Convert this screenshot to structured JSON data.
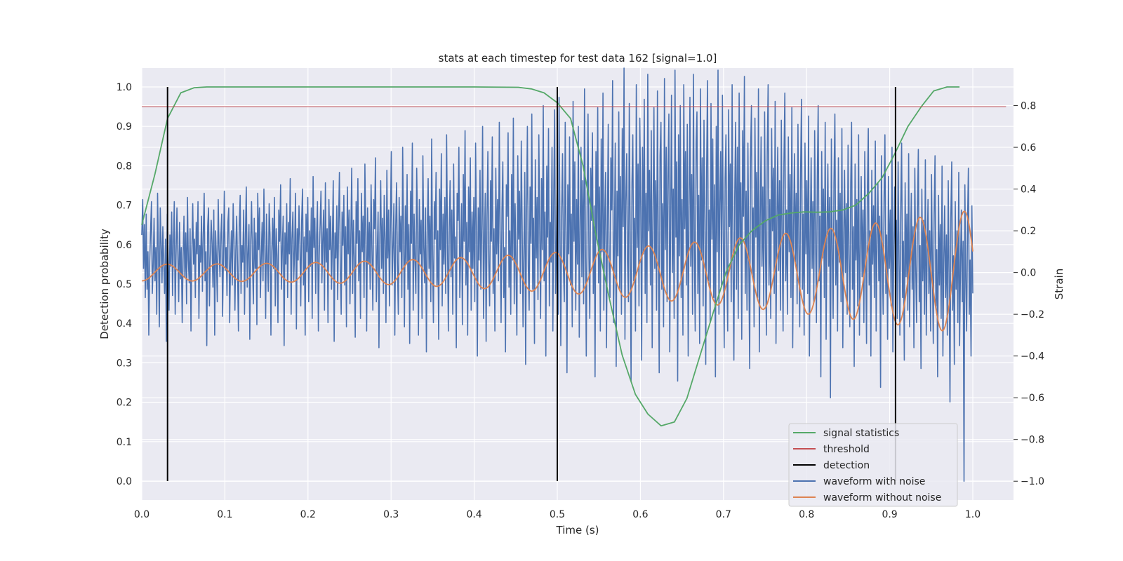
{
  "chart_data": {
    "type": "line",
    "title": "stats at each timestep for test data 162 [signal=1.0]",
    "xlabel": "Time (s)",
    "ylabel": "Detection probability",
    "y2label": "Strain",
    "xlim": [
      0.0,
      1.05
    ],
    "ylim": [
      -0.048,
      1.048
    ],
    "y2lim": [
      -1.09,
      0.98
    ],
    "x_ticks": [
      0.0,
      0.1,
      0.2,
      0.3,
      0.4,
      0.5,
      0.6,
      0.7,
      0.8,
      0.9,
      1.0
    ],
    "x_tick_labels": [
      "0.0",
      "0.1",
      "0.2",
      "0.3",
      "0.4",
      "0.5",
      "0.6",
      "0.7",
      "0.8",
      "0.9",
      "1.0"
    ],
    "y_ticks": [
      0.0,
      0.1,
      0.2,
      0.3,
      0.4,
      0.5,
      0.6,
      0.7,
      0.8,
      0.9,
      1.0
    ],
    "y_tick_labels": [
      "0.0",
      "0.1",
      "0.2",
      "0.3",
      "0.4",
      "0.5",
      "0.6",
      "0.7",
      "0.8",
      "0.9",
      "1.0"
    ],
    "y2_ticks": [
      -1.0,
      -0.8,
      -0.6,
      -0.4,
      -0.2,
      0.0,
      0.2,
      0.4,
      0.6,
      0.8
    ],
    "y2_tick_labels": [
      "−1.0",
      "−0.8",
      "−0.6",
      "−0.4",
      "−0.2",
      "0.0",
      "0.2",
      "0.4",
      "0.6",
      "0.8"
    ],
    "grid": true,
    "legend_position": "bottom-right",
    "threshold": 0.95,
    "detections": [
      0.031,
      0.5,
      0.907
    ],
    "series": [
      {
        "name": "signal statistics",
        "color": "#55a868",
        "axis": "left",
        "x": [
          0.0,
          0.016,
          0.031,
          0.047,
          0.063,
          0.078,
          0.094,
          0.125,
          0.2,
          0.3,
          0.4,
          0.453,
          0.469,
          0.484,
          0.5,
          0.516,
          0.531,
          0.547,
          0.563,
          0.578,
          0.594,
          0.609,
          0.625,
          0.641,
          0.656,
          0.672,
          0.688,
          0.703,
          0.719,
          0.734,
          0.75,
          0.766,
          0.781,
          0.797,
          0.813,
          0.828,
          0.844,
          0.859,
          0.875,
          0.891,
          0.906,
          0.922,
          0.938,
          0.953,
          0.969,
          0.984
        ],
        "values": [
          0.65,
          0.78,
          0.92,
          0.985,
          0.998,
          1.0,
          1.0,
          1.0,
          1.0,
          1.0,
          1.0,
          0.999,
          0.995,
          0.985,
          0.96,
          0.92,
          0.8,
          0.62,
          0.46,
          0.32,
          0.22,
          0.17,
          0.14,
          0.15,
          0.21,
          0.32,
          0.43,
          0.53,
          0.6,
          0.635,
          0.66,
          0.675,
          0.68,
          0.683,
          0.682,
          0.683,
          0.688,
          0.7,
          0.73,
          0.77,
          0.83,
          0.9,
          0.95,
          0.99,
          1.0,
          1.0
        ]
      },
      {
        "name": "threshold",
        "color": "#c44e52",
        "axis": "left"
      },
      {
        "name": "detection",
        "color": "#000000",
        "axis": "left"
      },
      {
        "name": "waveform with noise",
        "color": "#4c72b0",
        "axis": "right",
        "x_start": 0.0,
        "x_end": 1.0,
        "values": [
          0.18,
          0.35,
          0.02,
          0.23,
          -0.12,
          0.28,
          -0.08,
          0.1,
          -0.3,
          0.05,
          0.2,
          0.34,
          -0.1,
          0.04,
          0.26,
          -0.04,
          0.12,
          -0.2,
          0.38,
          0.09,
          -0.26,
          0.31,
          0.15,
          -0.05,
          0.22,
          0.04,
          -0.1,
          0.16,
          -0.33,
          0.28,
          0.07,
          -0.18,
          0.18,
          0.03,
          0.29,
          -0.11,
          0.14,
          0.34,
          -0.2,
          0.08,
          0.31,
          0.1,
          -0.14,
          0.24,
          -0.03,
          0.12,
          -0.24,
          0.06,
          0.27,
          -0.02,
          0.19,
          -0.15,
          0.36,
          0.06,
          -0.05,
          0.21,
          -0.28,
          0.1,
          0.33,
          0.04,
          0.16,
          -0.12,
          0.24,
          0.09,
          0.34,
          -0.22,
          0.13,
          0.05,
          0.27,
          -0.09,
          0.18,
          0.38,
          -0.04,
          0.1,
          -0.35,
          0.22,
          0.31,
          -0.16,
          0.07,
          0.25,
          0.14,
          -0.07,
          0.3,
          -0.3,
          0.2,
          0.06,
          -0.14,
          0.35,
          0.11,
          -0.02,
          0.17,
          0.28,
          -0.21,
          0.08,
          0.39,
          0.01,
          0.12,
          -0.11,
          0.24,
          0.31,
          -0.24,
          0.04,
          0.2,
          -0.06,
          0.33,
          0.16,
          -0.18,
          0.1,
          0.27,
          0.03,
          -0.28,
          0.22,
          0.37,
          -0.1,
          0.13,
          0.05,
          0.3,
          -0.2,
          0.18,
          0.41,
          -0.07,
          0.09,
          0.23,
          -0.32,
          0.15,
          0.34,
          0.06,
          -0.15,
          0.26,
          0.02,
          0.19,
          -0.25,
          0.38,
          0.11,
          0.31,
          -0.12,
          0.07,
          0.24,
          -0.04,
          0.4,
          0.14,
          -0.22,
          0.28,
          0.05,
          -0.09,
          0.33,
          0.18,
          -0.3,
          0.1,
          0.26,
          0.02,
          0.36,
          -0.16,
          0.21,
          0.08,
          -0.24,
          0.3,
          0.15,
          0.42,
          -0.08,
          0.12,
          0.27,
          -0.35,
          0.19,
          0.04,
          0.33,
          -0.12,
          0.24,
          0.09,
          0.45,
          -0.2,
          0.16,
          0.29,
          -0.04,
          0.11,
          0.38,
          -0.27,
          0.21,
          0.06,
          0.32,
          0.14,
          -0.16,
          0.25,
          0.4,
          -0.06,
          0.17,
          -0.3,
          0.28,
          0.1,
          0.36,
          -0.14,
          0.2,
          0.03,
          0.31,
          -0.22,
          0.46,
          0.12,
          0.26,
          -0.1,
          0.18,
          0.34,
          -0.28,
          0.08,
          0.23,
          0.39,
          -0.05,
          0.15,
          0.3,
          -0.18,
          0.43,
          0.05,
          0.21,
          -0.24,
          0.35,
          0.11,
          0.27,
          -0.08,
          0.16,
          0.44,
          -0.33,
          0.19,
          0.07,
          0.32,
          -0.13,
          0.24,
          0.48,
          0.02,
          -0.2,
          0.29,
          0.13,
          0.37,
          -0.06,
          0.22,
          -0.26,
          0.41,
          0.09,
          0.3,
          -0.15,
          0.18,
          0.5,
          -0.1,
          0.25,
          0.06,
          -0.31,
          0.34,
          0.14,
          0.45,
          -0.04,
          0.2,
          -0.22,
          0.38,
          0.1,
          0.27,
          -0.12,
          0.52,
          0.16,
          -0.28,
          0.31,
          0.04,
          0.24,
          -0.08,
          0.42,
          0.12,
          -0.18,
          0.35,
          0.21,
          0.55,
          -0.14,
          0.08,
          0.29,
          -0.36,
          0.18,
          0.44,
          0.02,
          0.26,
          -0.1,
          0.37,
          0.15,
          -0.24,
          0.49,
          0.07,
          0.3,
          -0.16,
          0.22,
          0.58,
          -0.06,
          0.13,
          0.33,
          -0.3,
          0.2,
          0.43,
          0.05,
          -0.2,
          0.36,
          0.1,
          0.27,
          -0.12,
          0.6,
          0.18,
          -0.26,
          0.32,
          0.04,
          0.47,
          -0.08,
          0.23,
          -0.34,
          0.39,
          0.14,
          0.62,
          -0.18,
          0.28,
          0.06,
          -0.1,
          0.5,
          0.19,
          -0.3,
          0.35,
          0.09,
          0.25,
          -0.22,
          0.56,
          0.12,
          -0.05,
          0.31,
          -0.38,
          0.21,
          0.45,
          0.02,
          0.27,
          -0.14,
          0.64,
          0.08,
          -0.24,
          0.34,
          0.16,
          0.48,
          -0.06,
          0.2,
          -0.32,
          0.4,
          0.11,
          0.57,
          -0.16,
          0.28,
          0.04,
          0.36,
          -0.1,
          0.66,
          0.14,
          -0.28,
          0.22,
          0.44,
          -0.02,
          0.3,
          -0.2,
          0.52,
          0.07,
          0.17,
          -0.36,
          0.38,
          0.25,
          0.6,
          -0.12,
          0.09,
          0.33,
          -0.25,
          0.47,
          0.15,
          0.68,
          -0.06,
          0.24,
          -0.3,
          0.41,
          0.1,
          0.55,
          -0.18,
          0.29,
          0.02,
          0.36,
          -0.14,
          0.62,
          0.19,
          -0.4,
          0.31,
          0.06,
          0.49,
          -0.08,
          0.23,
          0.7,
          -0.22,
          0.13,
          0.38,
          -0.33,
          0.26,
          0.58,
          0.04,
          -0.16,
          0.44,
          0.15,
          0.65,
          -0.1,
          0.21,
          -0.28,
          0.5,
          0.09,
          0.35,
          -0.04,
          0.72,
          0.18,
          -0.24,
          0.3,
          0.53,
          -0.12,
          0.12,
          -0.38,
          0.42,
          0.27,
          0.67,
          -0.07,
          0.2,
          -0.2,
          0.47,
          0.06,
          0.74,
          -0.15,
          0.33,
          0.01,
          -0.3,
          0.56,
          0.16,
          0.39,
          -0.1,
          0.63,
          0.23,
          -0.26,
          0.1,
          0.48,
          -0.44,
          0.3,
          0.7,
          0.03,
          -0.18,
          0.41,
          0.14,
          0.76,
          -0.08,
          0.26,
          -0.34,
          0.54,
          0.07,
          0.36,
          -0.13,
          0.66,
          0.2,
          -0.22,
          0.45,
          0.11,
          0.8,
          -0.04,
          0.29,
          -0.4,
          0.51,
          0.17,
          0.69,
          -0.16,
          0.24,
          0.05,
          0.6,
          -0.28,
          0.38,
          0.78,
          -0.1,
          0.13,
          0.46,
          -0.2,
          0.84,
          0.22,
          -0.35,
          0.31,
          0.57,
          0.02,
          -0.14,
          0.72,
          0.18,
          -0.48,
          0.42,
          0.09,
          0.65,
          -0.06,
          0.28,
          -0.26,
          0.82,
          0.15,
          0.53,
          -0.18,
          0.35,
          0.04,
          0.7,
          -0.31,
          0.2,
          0.6,
          -0.02,
          0.44,
          -0.15,
          0.88,
          0.12,
          -0.4,
          0.37,
          0.76,
          0.07,
          -0.22,
          0.5,
          0.25,
          0.67,
          -0.1,
          0.32,
          -0.5,
          0.58,
          0.16,
          0.79,
          -0.05,
          0.41,
          -0.28,
          0.64,
          0.1,
          0.86,
          -0.18,
          0.27,
          0.48,
          -0.36,
          0.19,
          0.71,
          0.03,
          -0.12,
          0.55,
          0.3,
          0.92,
          -0.24,
          0.14,
          0.62,
          -0.45,
          0.39,
          0.08,
          0.77,
          -0.08,
          0.46,
          -0.2,
          0.69,
          0.22,
          0.98,
          -0.32,
          0.34,
          0.57,
          0.05,
          -0.14,
          0.81,
          0.18,
          -0.52,
          0.43,
          0.66,
          -0.04,
          0.26,
          -0.28,
          0.9,
          0.12,
          0.52,
          -0.16,
          0.74,
          0.31,
          -0.42,
          0.6,
          0.09,
          0.83,
          -0.1,
          0.38,
          -0.24,
          0.95,
          0.2,
          0.49,
          -0.06,
          0.68,
          -0.36,
          0.28,
          0.79,
          0.02,
          0.44,
          -0.18,
          0.87,
          0.15,
          -0.48,
          0.56,
          0.72,
          -0.08,
          0.33,
          -0.26,
          0.93,
          0.11,
          0.6,
          -0.14,
          0.46,
          0.76,
          -0.38,
          0.24,
          0.85,
          0.0,
          0.4,
          -0.22,
          0.97,
          0.17,
          0.53,
          -0.52,
          0.66,
          0.08,
          0.8,
          -0.12,
          0.35,
          -0.3,
          0.9,
          0.21,
          0.58,
          -0.06,
          0.71,
          -0.4,
          0.29,
          0.84,
          0.03,
          0.47,
          -0.2,
          0.95,
          0.13,
          -0.28,
          0.62,
          0.77,
          -0.1,
          0.37,
          -0.34,
          0.88,
          0.06,
          0.55,
          -0.16,
          0.73,
          0.25,
          -0.44,
          0.5,
          0.92,
          -0.04,
          0.3,
          -0.24,
          0.81,
          0.16,
          0.64,
          -0.12,
          0.42,
          -0.5,
          0.7,
          0.1,
          0.97,
          -0.2,
          0.33,
          0.58,
          -0.06,
          0.85,
          0.19,
          -0.36,
          0.45,
          0.66,
          0.0,
          -0.28,
          0.78,
          0.22,
          0.52,
          -0.14,
          0.9,
          0.05,
          -0.42,
          0.36,
          0.72,
          -0.08,
          0.6,
          -0.22,
          0.86,
          0.14,
          0.43,
          -0.32,
          0.68,
          0.27,
          0.94,
          -0.1,
          0.39,
          -0.18,
          0.62,
          0.08,
          -0.46,
          0.55,
          0.8,
          -0.02,
          0.31,
          -0.26,
          0.74,
          0.17,
          0.48,
          -0.12,
          0.88,
          -0.38,
          0.26,
          0.65,
          0.03,
          0.41,
          -0.16,
          0.77,
          0.12,
          -0.3,
          0.57,
          0.9,
          -0.06,
          0.35,
          -0.22,
          0.69,
          0.2,
          0.5,
          -0.1,
          0.82,
          -0.34,
          0.24,
          0.6,
          0.01,
          0.44,
          -0.18,
          0.73,
          0.15,
          -0.28,
          0.52,
          0.86,
          -0.04,
          0.3,
          -0.2,
          0.65,
          0.1,
          0.47,
          -0.12,
          0.79,
          -0.36,
          0.22,
          0.57,
          0.05,
          0.38,
          -0.15,
          0.71,
          0.13,
          -0.26,
          0.49,
          0.83,
          -0.08,
          0.28,
          -0.3,
          0.62,
          0.09,
          0.44,
          -0.1,
          0.75,
          -0.4,
          0.2,
          0.55,
          0.02,
          0.34,
          -0.14,
          0.68,
          0.16,
          -0.24,
          0.46,
          0.8,
          -0.04,
          0.27,
          -0.5,
          0.58,
          0.07,
          0.4,
          -0.12,
          0.72,
          -0.32,
          0.18,
          0.52,
          0.03,
          0.36,
          -0.6,
          0.64,
          0.11,
          -0.22,
          0.43,
          0.76,
          -0.06,
          0.25,
          -0.28,
          0.55,
          0.05,
          0.38,
          -0.14,
          0.69,
          -0.36,
          0.16,
          0.49,
          0.0,
          0.33,
          -0.2,
          0.61,
          0.09,
          -0.26,
          0.4,
          0.72,
          -0.08,
          0.22,
          -0.45,
          0.52,
          0.06,
          0.35,
          -0.16,
          0.66,
          -0.3,
          0.14,
          0.46,
          -0.02,
          0.3,
          -0.24,
          0.58,
          0.1,
          -0.34,
          0.38,
          0.69,
          -0.06,
          0.2,
          -0.4,
          0.49,
          0.04,
          0.32,
          -0.12,
          0.63,
          -0.28,
          0.17,
          0.43,
          -0.04,
          0.27,
          -0.55,
          0.56,
          0.08,
          -0.2,
          0.36,
          0.66,
          -0.1,
          0.18,
          -0.32,
          0.46,
          0.02,
          0.3,
          -0.16,
          0.6,
          -0.38,
          0.12,
          0.41,
          -0.06,
          0.25,
          -0.22,
          0.53,
          0.07,
          -0.3,
          0.33,
          0.62,
          -0.12,
          0.15,
          -0.42,
          0.43,
          -0.02,
          0.28,
          -0.18,
          0.57,
          -0.26,
          0.1,
          0.38,
          -0.08,
          0.22,
          -0.36,
          0.5,
          0.04,
          -0.24,
          0.31,
          0.59,
          -0.14,
          0.13,
          -0.46,
          0.4,
          -0.04,
          0.25,
          -0.2,
          0.54,
          -0.3,
          0.08,
          0.35,
          -0.1,
          0.2,
          -0.28,
          0.47,
          0.02,
          -0.34,
          0.28,
          0.56,
          -0.16,
          0.11,
          -0.5,
          0.37,
          -0.06,
          0.23,
          -0.22,
          0.51,
          -0.4,
          0.06,
          0.32,
          -0.12,
          0.18,
          -0.3,
          0.44,
          -0.02,
          -0.62,
          0.26,
          0.53,
          -0.18,
          0.08,
          -0.44,
          0.34,
          -0.08,
          0.2,
          -0.24,
          0.48,
          -0.35,
          0.04,
          0.3,
          -0.14,
          0.15,
          -1.0,
          0.42,
          -0.04,
          -0.28,
          0.24,
          0.5,
          -0.2,
          0.06,
          -0.4,
          0.32,
          -0.1
        ]
      },
      {
        "name": "waveform without noise",
        "color": "#dd8452",
        "axis": "right",
        "x_start": 0.0,
        "x_end": 1.0
      }
    ]
  }
}
